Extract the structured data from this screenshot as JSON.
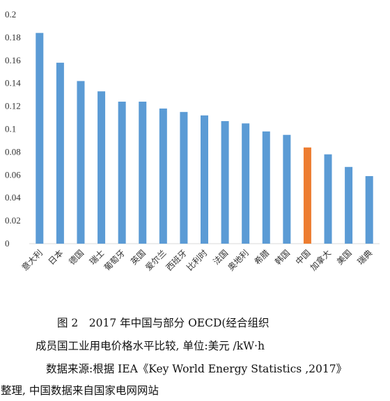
{
  "chart_data": {
    "type": "bar",
    "categories": [
      "意大利",
      "日本",
      "德国",
      "瑞士",
      "葡萄牙",
      "英国",
      "爱尔兰",
      "西班牙",
      "比利时",
      "法国",
      "奥地利",
      "希腊",
      "韩国",
      "中国",
      "加拿大",
      "美国",
      "瑞典"
    ],
    "values": [
      0.184,
      0.158,
      0.142,
      0.133,
      0.124,
      0.124,
      0.118,
      0.115,
      0.112,
      0.107,
      0.105,
      0.098,
      0.095,
      0.084,
      0.078,
      0.067,
      0.059
    ],
    "highlight_category": "中国",
    "ylim": [
      0,
      0.2
    ],
    "yticks": [
      "0",
      "0.02",
      "0.04",
      "0.06",
      "0.08",
      "0.1",
      "0.12",
      "0.14",
      "0.16",
      "0.18",
      "0.2"
    ],
    "grid": false,
    "colors": {
      "bar": "#5b9bd5",
      "highlight": "#ed7d31",
      "axis": "#d9d9d9"
    }
  },
  "caption": {
    "line1": "图 2　2017 年中国与部分 OECD(经合组织",
    "line2": "成员国工业用电价格水平比较, 单位:美元 /kW·h",
    "line3": "数据来源:根据 IEA《Key World Energy Statistics ,2017》",
    "line4": "整理, 中国数据来自国家电网网站"
  }
}
